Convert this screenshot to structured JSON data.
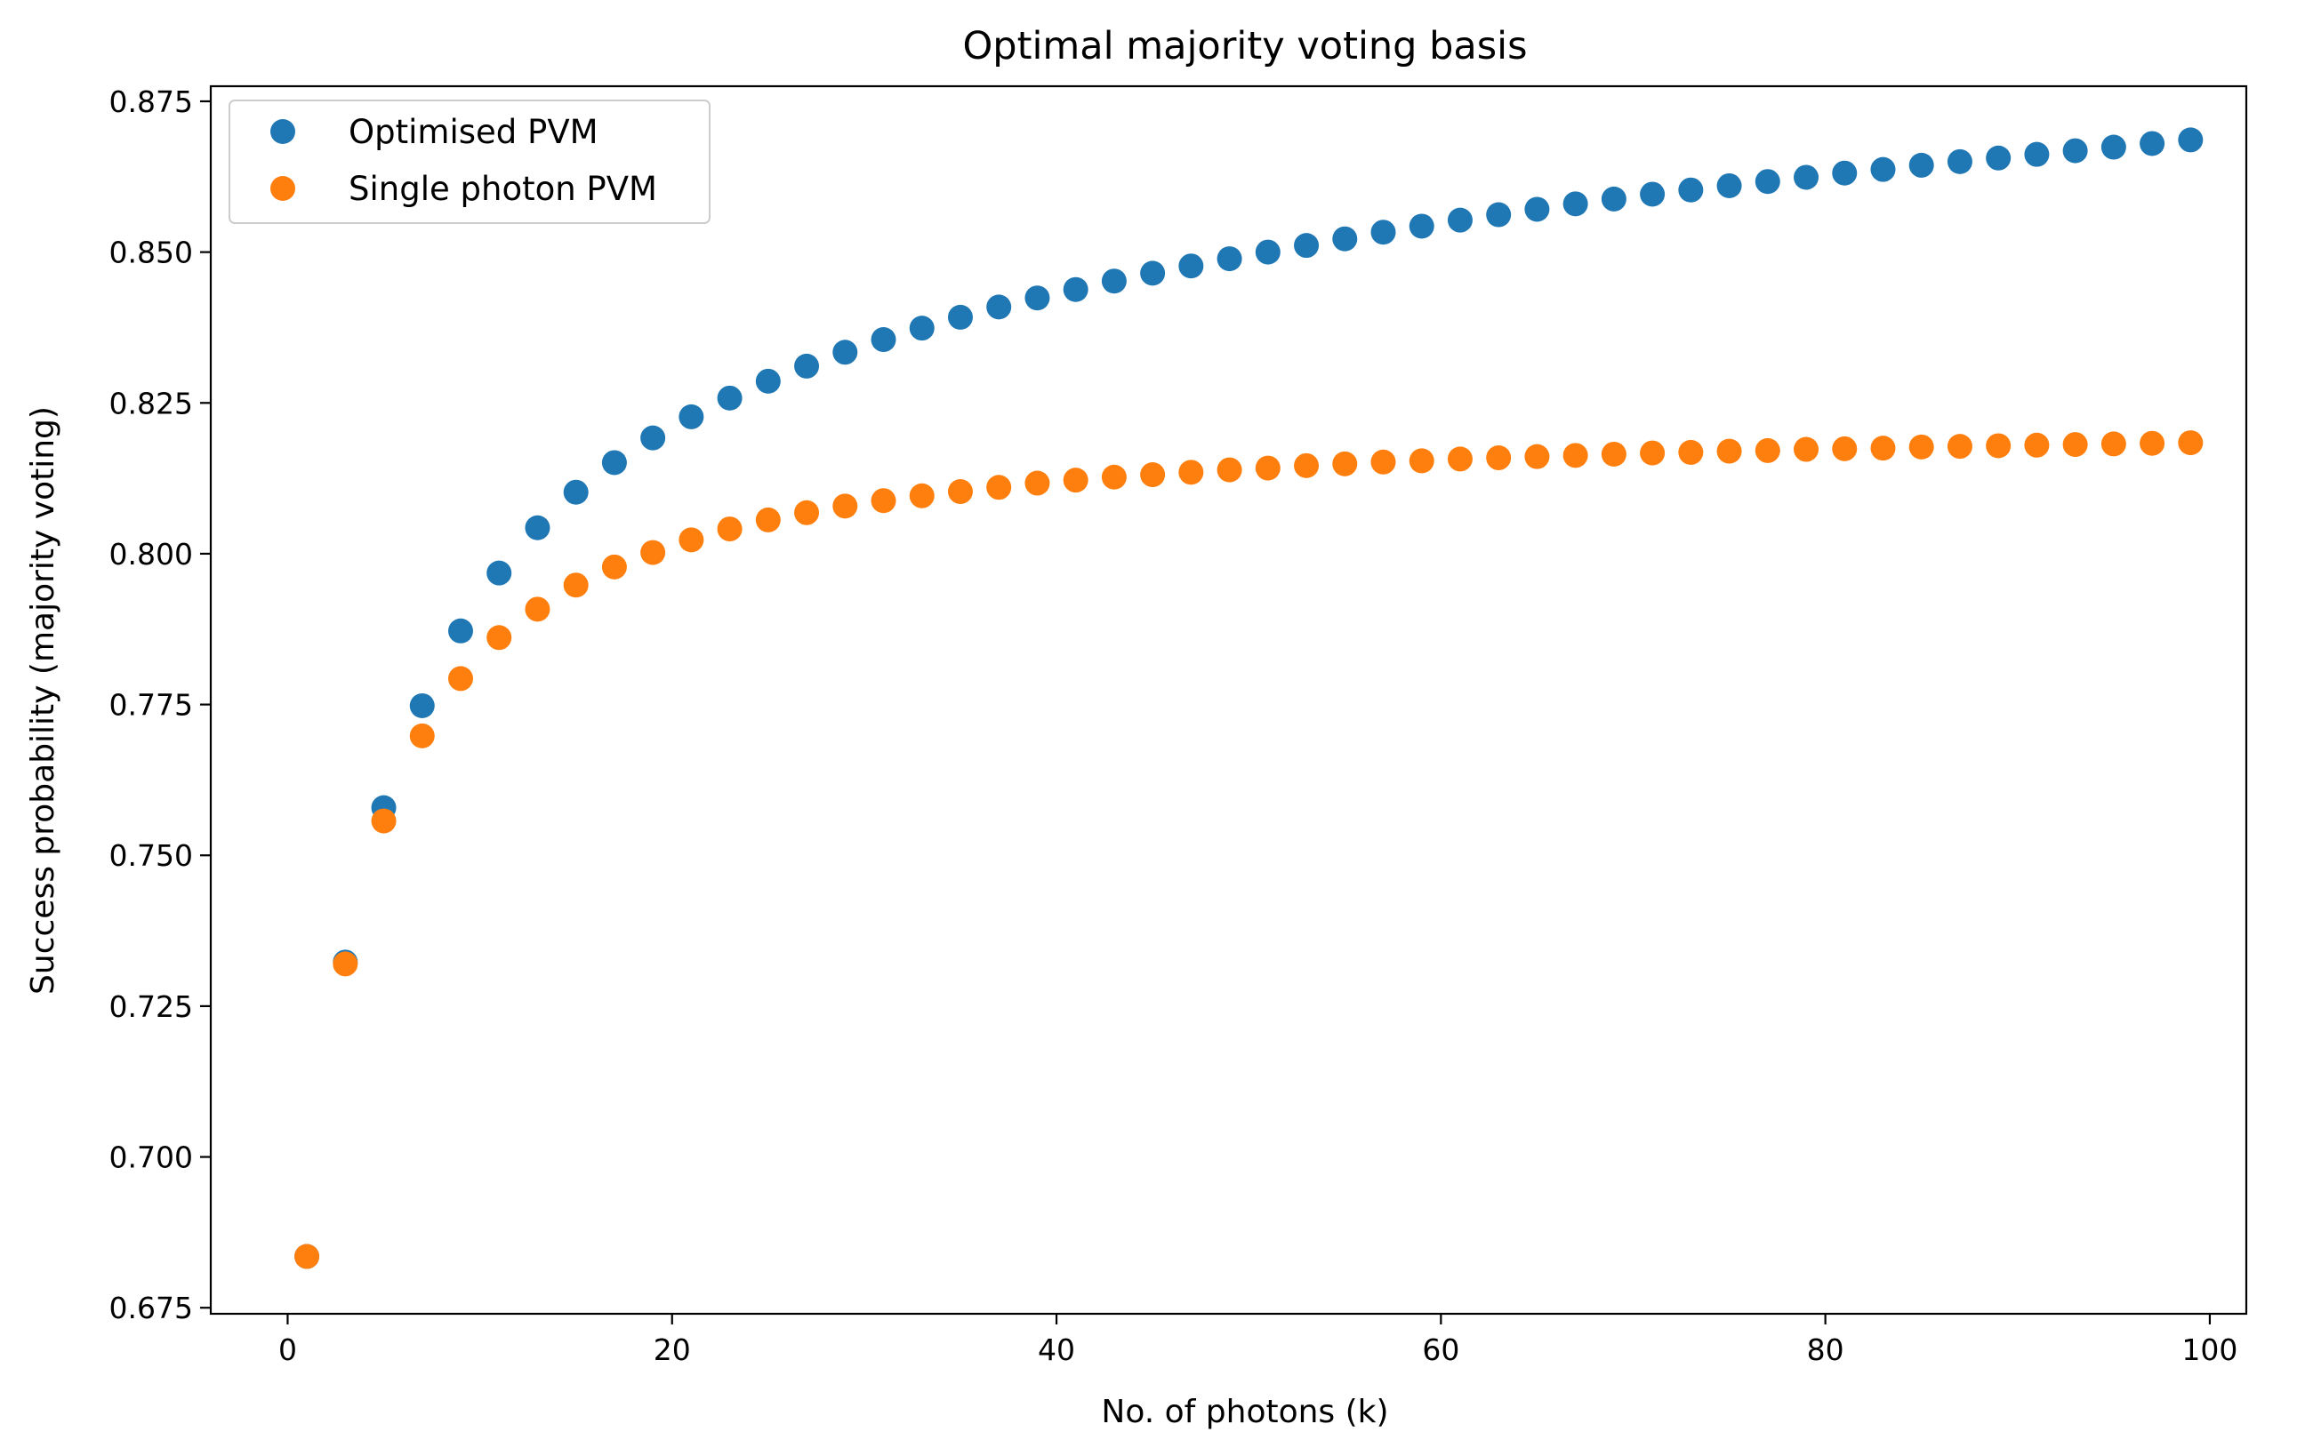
{
  "chart_data": {
    "type": "scatter",
    "title": "Optimal majority voting basis",
    "xlabel": "No. of photons (k)",
    "ylabel": "Success probability (majority voting)",
    "xlim": [
      -4,
      101.9
    ],
    "ylim": [
      0.674,
      0.8775
    ],
    "xticks": [
      0,
      20,
      40,
      60,
      80,
      100
    ],
    "xtick_labels": [
      "0",
      "20",
      "40",
      "60",
      "80",
      "100"
    ],
    "yticks": [
      0.675,
      0.7,
      0.725,
      0.75,
      0.775,
      0.8,
      0.825,
      0.85,
      0.875
    ],
    "ytick_labels": [
      "0.675",
      "0.700",
      "0.725",
      "0.750",
      "0.775",
      "0.800",
      "0.825",
      "0.850",
      "0.875"
    ],
    "grid": false,
    "legend_position": "top-left",
    "x": [
      1,
      3,
      5,
      7,
      9,
      11,
      13,
      15,
      17,
      19,
      21,
      23,
      25,
      27,
      29,
      31,
      33,
      35,
      37,
      39,
      41,
      43,
      45,
      47,
      49,
      51,
      53,
      55,
      57,
      59,
      61,
      63,
      65,
      67,
      69,
      71,
      73,
      75,
      77,
      79,
      81,
      83,
      85,
      87,
      89,
      91,
      93,
      95,
      97,
      99
    ],
    "series": [
      {
        "name": "Optimised PVM",
        "color": "#1f77b4",
        "values": [
          0.6835,
          0.7323,
          0.7579,
          0.7748,
          0.7872,
          0.7968,
          0.8043,
          0.8102,
          0.8151,
          0.8192,
          0.8227,
          0.8258,
          0.8286,
          0.8311,
          0.8334,
          0.8355,
          0.8374,
          0.8392,
          0.8409,
          0.8424,
          0.8438,
          0.8452,
          0.8465,
          0.8477,
          0.8489,
          0.85,
          0.8511,
          0.8522,
          0.8533,
          0.8543,
          0.8553,
          0.8562,
          0.8571,
          0.858,
          0.8588,
          0.8596,
          0.8603,
          0.861,
          0.8617,
          0.8624,
          0.8631,
          0.8637,
          0.8644,
          0.865,
          0.8656,
          0.8662,
          0.8668,
          0.8674,
          0.868,
          0.8686
        ]
      },
      {
        "name": "Single photon PVM",
        "color": "#ff7f0e",
        "values": [
          0.6835,
          0.732,
          0.7557,
          0.7698,
          0.7793,
          0.7861,
          0.7908,
          0.7948,
          0.7978,
          0.8002,
          0.8023,
          0.8041,
          0.8056,
          0.8068,
          0.8079,
          0.8088,
          0.8096,
          0.8103,
          0.811,
          0.8117,
          0.8122,
          0.8127,
          0.8131,
          0.8135,
          0.8139,
          0.8142,
          0.8146,
          0.8149,
          0.8152,
          0.8154,
          0.8157,
          0.8159,
          0.8161,
          0.8163,
          0.8165,
          0.8167,
          0.8168,
          0.817,
          0.8171,
          0.8173,
          0.8174,
          0.8175,
          0.8177,
          0.8178,
          0.8179,
          0.818,
          0.8181,
          0.8182,
          0.8183,
          0.8184
        ]
      }
    ]
  }
}
